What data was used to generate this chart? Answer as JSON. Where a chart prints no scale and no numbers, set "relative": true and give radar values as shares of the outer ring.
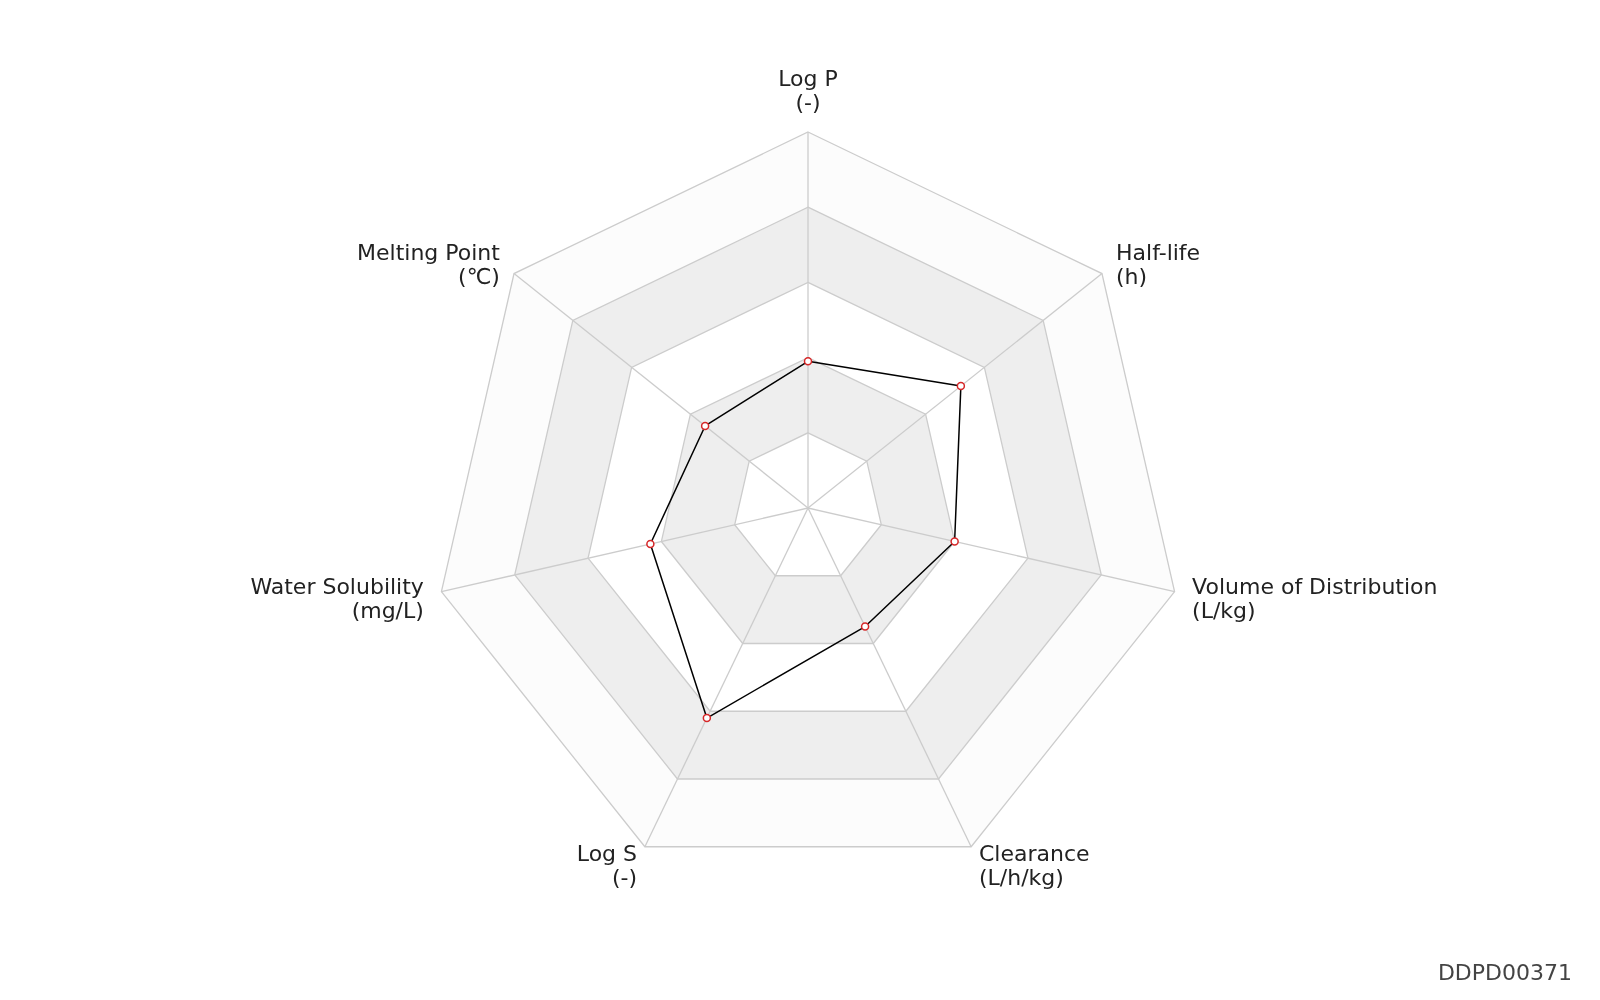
{
  "chart_data": {
    "type": "radar",
    "relative": true,
    "categories": [
      "Log P\n(-)",
      "Half-life\n(h)",
      "Volume of Distribution\n(L/kg)",
      "Clearance\n(L/h/kg)",
      "Log S\n(-)",
      "Water Solubility\n(mg/L)",
      "Melting Point\n(℃)"
    ],
    "series": [
      {
        "color": "#000000",
        "values": [
          0.39,
          0.52,
          0.4,
          0.35,
          0.62,
          0.43,
          0.35
        ]
      }
    ],
    "marker": "circle",
    "annotations": [
      "DDPD00371"
    ]
  }
}
